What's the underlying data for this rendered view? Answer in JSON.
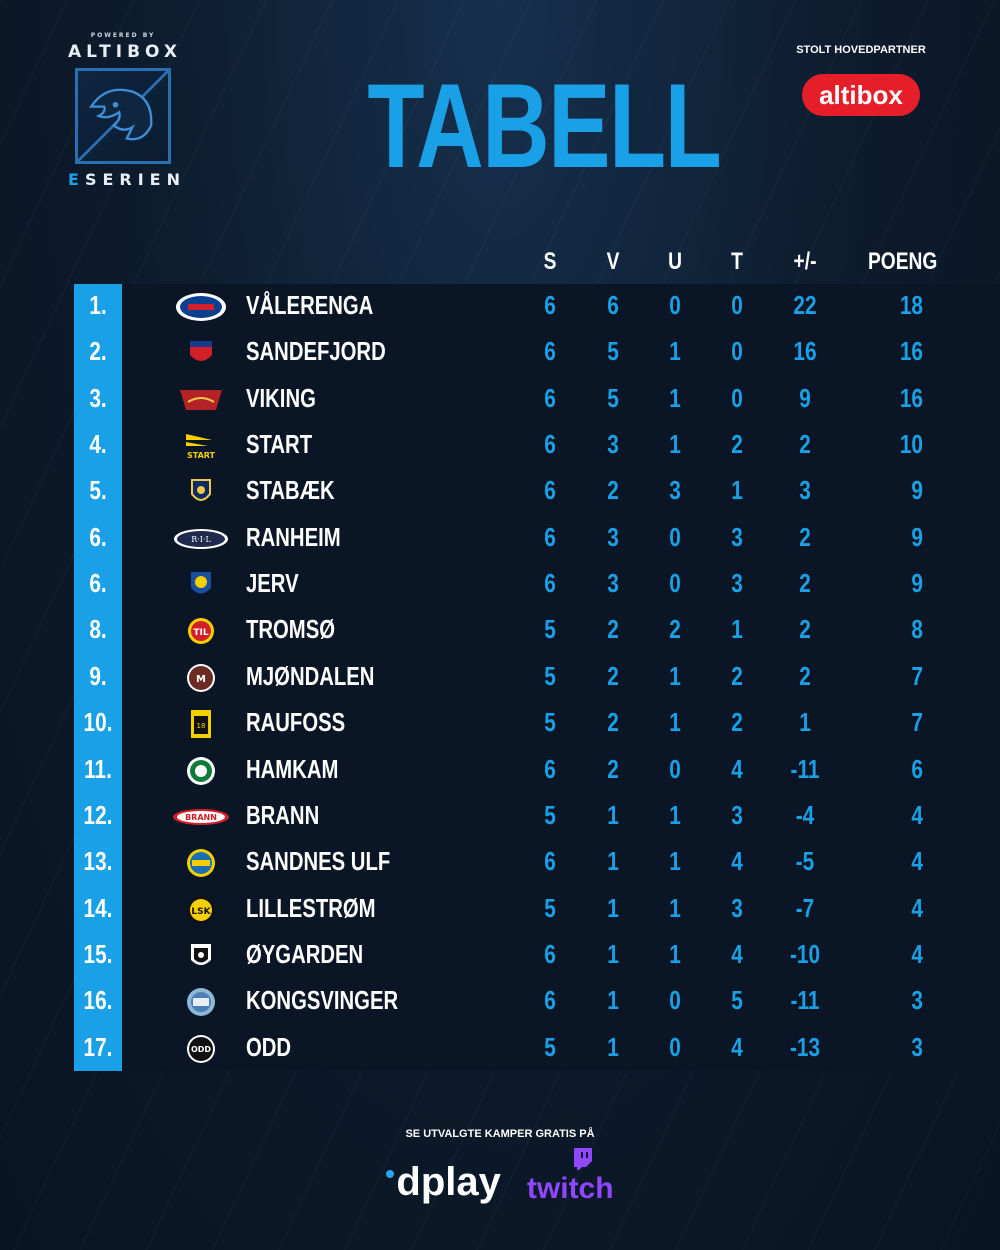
{
  "brand": {
    "powered_by": "POWERED BY",
    "name": "ALTIBOX",
    "series_e": "E",
    "series_rest": "SERIEN"
  },
  "title": "TABELL",
  "partner": {
    "label": "STOLT HOVEDPARTNER",
    "logo_text": "altibox",
    "logo_color": "#e51e2a"
  },
  "columns": {
    "played": "S",
    "won": "V",
    "drawn": "U",
    "lost": "T",
    "diff": "+/-",
    "points": "POENG"
  },
  "accent_color": "#1aa0e6",
  "rows": [
    {
      "rank": "1.",
      "team": "VÅLERENGA",
      "logo": "valerenga-logo",
      "played": "6",
      "won": "6",
      "drawn": "0",
      "lost": "0",
      "diff": "22",
      "points": "18"
    },
    {
      "rank": "2.",
      "team": "SANDEFJORD",
      "logo": "sandefjord-logo",
      "played": "6",
      "won": "5",
      "drawn": "1",
      "lost": "0",
      "diff": "16",
      "points": "16"
    },
    {
      "rank": "3.",
      "team": "VIKING",
      "logo": "viking-logo",
      "played": "6",
      "won": "5",
      "drawn": "1",
      "lost": "0",
      "diff": "9",
      "points": "16"
    },
    {
      "rank": "4.",
      "team": "START",
      "logo": "start-logo",
      "played": "6",
      "won": "3",
      "drawn": "1",
      "lost": "2",
      "diff": "2",
      "points": "10"
    },
    {
      "rank": "5.",
      "team": "STABÆK",
      "logo": "stabaek-logo",
      "played": "6",
      "won": "2",
      "drawn": "3",
      "lost": "1",
      "diff": "3",
      "points": "9"
    },
    {
      "rank": "6.",
      "team": "RANHEIM",
      "logo": "ranheim-logo",
      "played": "6",
      "won": "3",
      "drawn": "0",
      "lost": "3",
      "diff": "2",
      "points": "9"
    },
    {
      "rank": "6.",
      "team": "JERV",
      "logo": "jerv-logo",
      "played": "6",
      "won": "3",
      "drawn": "0",
      "lost": "3",
      "diff": "2",
      "points": "9"
    },
    {
      "rank": "8.",
      "team": "TROMSØ",
      "logo": "tromso-logo",
      "played": "5",
      "won": "2",
      "drawn": "2",
      "lost": "1",
      "diff": "2",
      "points": "8"
    },
    {
      "rank": "9.",
      "team": "MJØNDALEN",
      "logo": "mjondalen-logo",
      "played": "5",
      "won": "2",
      "drawn": "1",
      "lost": "2",
      "diff": "2",
      "points": "7"
    },
    {
      "rank": "10.",
      "team": "RAUFOSS",
      "logo": "raufoss-logo",
      "played": "5",
      "won": "2",
      "drawn": "1",
      "lost": "2",
      "diff": "1",
      "points": "7"
    },
    {
      "rank": "11.",
      "team": "HAMKAM",
      "logo": "hamkam-logo",
      "played": "6",
      "won": "2",
      "drawn": "0",
      "lost": "4",
      "diff": "-11",
      "points": "6"
    },
    {
      "rank": "12.",
      "team": "BRANN",
      "logo": "brann-logo",
      "played": "5",
      "won": "1",
      "drawn": "1",
      "lost": "3",
      "diff": "-4",
      "points": "4"
    },
    {
      "rank": "13.",
      "team": "SANDNES ULF",
      "logo": "sandnes-ulf-logo",
      "played": "6",
      "won": "1",
      "drawn": "1",
      "lost": "4",
      "diff": "-5",
      "points": "4"
    },
    {
      "rank": "14.",
      "team": "LILLESTRØM",
      "logo": "lillestrom-logo",
      "played": "5",
      "won": "1",
      "drawn": "1",
      "lost": "3",
      "diff": "-7",
      "points": "4"
    },
    {
      "rank": "15.",
      "team": "ØYGARDEN",
      "logo": "oygarden-logo",
      "played": "6",
      "won": "1",
      "drawn": "1",
      "lost": "4",
      "diff": "-10",
      "points": "4"
    },
    {
      "rank": "16.",
      "team": "KONGSVINGER",
      "logo": "kongsvinger-logo",
      "played": "6",
      "won": "1",
      "drawn": "0",
      "lost": "5",
      "diff": "-11",
      "points": "3"
    },
    {
      "rank": "17.",
      "team": "ODD",
      "logo": "odd-logo",
      "played": "5",
      "won": "1",
      "drawn": "0",
      "lost": "4",
      "diff": "-13",
      "points": "3"
    }
  ],
  "footer": {
    "text": "SE UTVALGTE KAMPER GRATIS PÅ",
    "dplay": "dplay",
    "twitch": "twitch"
  }
}
